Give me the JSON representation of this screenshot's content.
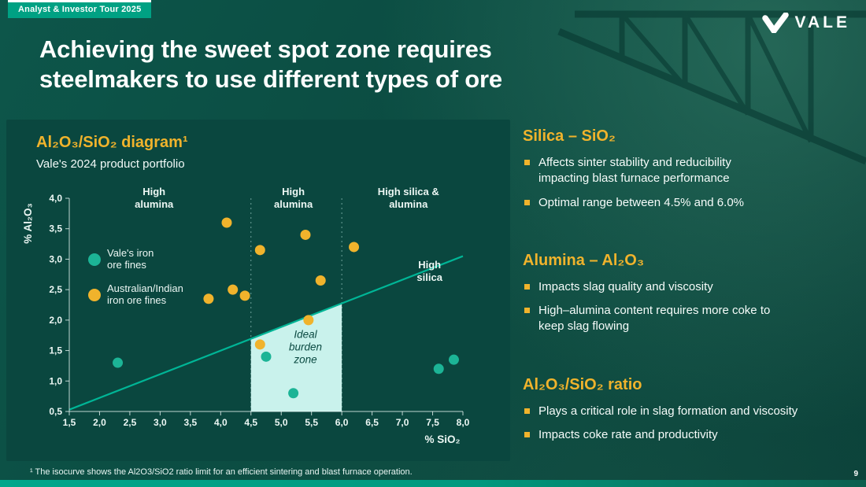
{
  "colors": {
    "accent_yellow": "#F0B32C",
    "accent_teal": "#00B596",
    "badge_green": "#00A183",
    "panel_bg": "#0A473F",
    "ideal_zone_fill": "#C9F2EC",
    "vale_dot_teal": "#1CB496",
    "background_green": "#0B4B41"
  },
  "header": {
    "event_badge": "Analyst & Investor Tour 2025",
    "logo_text": "VALE",
    "title_lines": [
      "Achieving the sweet spot zone requires",
      "steelmakers to use different types of ore"
    ]
  },
  "chart_data": {
    "type": "scatter",
    "title": "Al₂O₃/SiO₂ diagram¹",
    "subtitle": "Vale's 2024 product portfolio",
    "xlabel": "% SiO₂",
    "ylabel": "% Al₂O₃",
    "xlim": [
      1.5,
      8.0
    ],
    "ylim": [
      0.5,
      4.0
    ],
    "xticks": [
      "1,5",
      "2,0",
      "2,5",
      "3,0",
      "3,5",
      "4,0",
      "4,5",
      "5,0",
      "5,5",
      "6,0",
      "6,5",
      "7,0",
      "7,5",
      "8,0"
    ],
    "yticks": [
      "0,5",
      "1,0",
      "1,5",
      "2,0",
      "2,5",
      "3,0",
      "3,5",
      "4,0"
    ],
    "series": [
      {
        "name": "Vale's iron ore fines",
        "color": "#1CB496",
        "points": [
          [
            2.3,
            1.3
          ],
          [
            4.75,
            1.4
          ],
          [
            5.2,
            0.8
          ],
          [
            7.6,
            1.2
          ],
          [
            7.85,
            1.35
          ]
        ]
      },
      {
        "name": "Australian/Indian iron ore fines",
        "color": "#F0B32C",
        "points": [
          [
            4.1,
            3.6
          ],
          [
            4.65,
            3.15
          ],
          [
            5.4,
            3.4
          ],
          [
            6.2,
            3.2
          ],
          [
            3.8,
            2.35
          ],
          [
            4.2,
            2.5
          ],
          [
            4.4,
            2.4
          ],
          [
            5.65,
            2.65
          ],
          [
            5.45,
            2.0
          ],
          [
            4.65,
            1.6
          ]
        ]
      }
    ],
    "isocurve": {
      "x1": 1.5,
      "y1": 0.53,
      "x2": 8.0,
      "y2": 3.05
    },
    "ideal_zone": {
      "x_start": 4.5,
      "x_end": 6.0,
      "label": "Ideal\nburden\nzone",
      "label_x": 5.4,
      "label_y": 1.5
    },
    "zone_dividers": [
      4.5,
      6.0
    ],
    "region_labels": [
      {
        "text": "High\nalumina",
        "x": 2.9
      },
      {
        "text": "High\nalumina",
        "x": 5.2
      },
      {
        "text": "High silica &\nalumina",
        "x": 7.1
      }
    ],
    "right_label": {
      "text": "High\nsilica",
      "x": 7.45,
      "y": 2.75
    },
    "legend": [
      {
        "name": "Vale's iron\nore fines",
        "color": "#1CB496"
      },
      {
        "name": "Australian/Indian\niron ore fines",
        "color": "#F0B32C"
      }
    ],
    "grid": false,
    "legend_position": "inside top-left"
  },
  "sections": [
    {
      "heading": "Silica – SiO₂",
      "bullets": [
        "Affects sinter stability and reducibility\nimpacting blast furnace performance",
        "Optimal range between 4.5% and 6.0%"
      ]
    },
    {
      "heading": "Alumina – Al₂O₃",
      "bullets": [
        "Impacts slag quality and viscosity",
        "High–alumina content requires more coke to\nkeep slag flowing"
      ]
    },
    {
      "heading": "Al₂O₃/SiO₂ ratio",
      "bullets": [
        "Plays a critical role in slag formation and viscosity",
        "Impacts coke rate and productivity"
      ]
    }
  ],
  "footer": {
    "footnote": "¹ The isocurve shows the Al2O3/SiO2 ratio limit for an efficient sintering and blast furnace operation.",
    "page_number": "9"
  }
}
